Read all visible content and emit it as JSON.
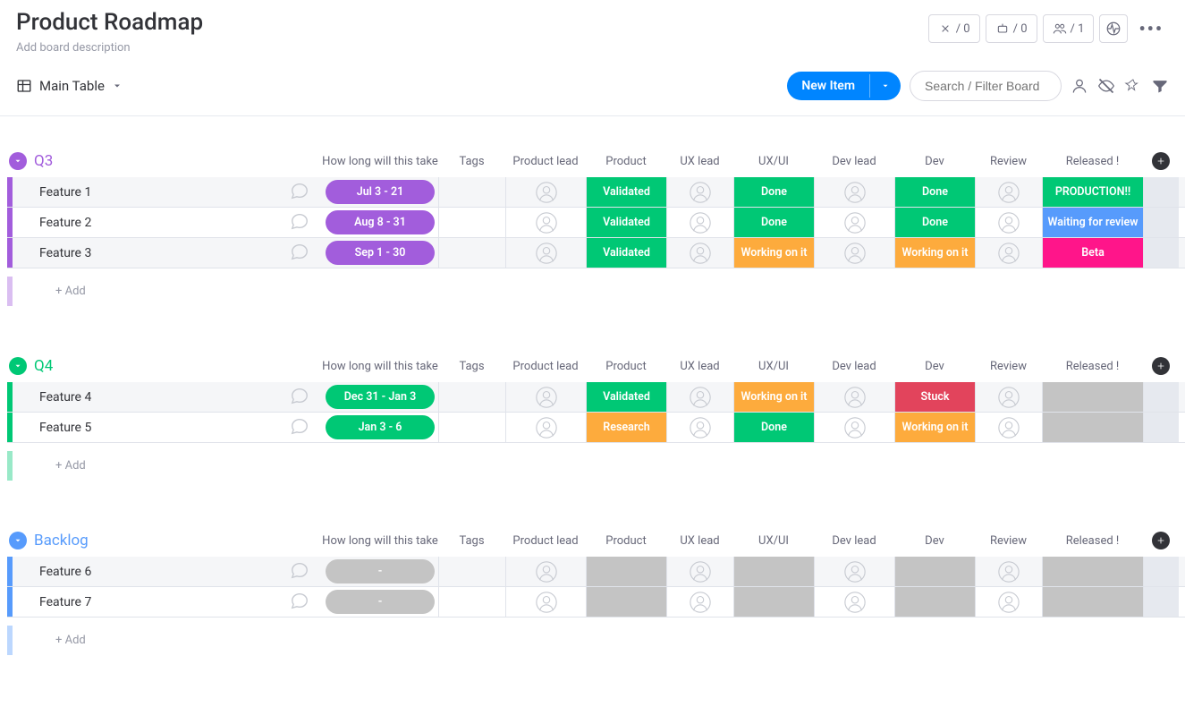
{
  "header": {
    "title": "Product Roadmap",
    "description_placeholder": "Add board description",
    "integrations_count": "/ 0",
    "automations_count": "/ 0",
    "members_count": "/ 1"
  },
  "toolbar": {
    "view_label": "Main Table",
    "new_item_label": "New Item",
    "search_placeholder": "Search / Filter Board"
  },
  "columns": [
    "How long will this take",
    "Tags",
    "Product lead",
    "Product",
    "UX lead",
    "UX/UI",
    "Dev lead",
    "Dev",
    "Review",
    "Released !"
  ],
  "add_row_label": "+ Add",
  "status_colors": {
    "Validated": "#00c875",
    "Done": "#00c875",
    "Working on it": "#fdab3d",
    "Research": "#fdab3d",
    "Stuck": "#e2445c",
    "PRODUCTION!!": "#00c875",
    "Waiting for review": "#579bfc",
    "Beta": "#ff158a"
  },
  "groups": [
    {
      "title": "Q3",
      "color": "#a25ddc",
      "rows": [
        {
          "name": "Feature 1",
          "timeline": "Jul 3 - 21",
          "timeline_color": "#a25ddc",
          "product": "Validated",
          "uxui": "Done",
          "dev": "Done",
          "released": "PRODUCTION!!"
        },
        {
          "name": "Feature 2",
          "timeline": "Aug 8 - 31",
          "timeline_color": "#a25ddc",
          "product": "Validated",
          "uxui": "Done",
          "dev": "Done",
          "released": "Waiting for review"
        },
        {
          "name": "Feature 3",
          "timeline": "Sep 1 - 30",
          "timeline_color": "#a25ddc",
          "product": "Validated",
          "uxui": "Working on it",
          "dev": "Working on it",
          "released": "Beta"
        }
      ]
    },
    {
      "title": "Q4",
      "color": "#00c875",
      "rows": [
        {
          "name": "Feature 4",
          "timeline": "Dec 31 - Jan 3",
          "timeline_color": "#00c875",
          "product": "Validated",
          "uxui": "Working on it",
          "dev": "Stuck",
          "released": ""
        },
        {
          "name": "Feature 5",
          "timeline": "Jan 3 - 6",
          "timeline_color": "#00c875",
          "product": "Research",
          "uxui": "Done",
          "dev": "Working on it",
          "released": ""
        }
      ]
    },
    {
      "title": "Backlog",
      "color": "#579bfc",
      "rows": [
        {
          "name": "Feature 6",
          "timeline": "-",
          "timeline_color": "#c4c4c4",
          "product": "",
          "uxui": "",
          "dev": "",
          "released": ""
        },
        {
          "name": "Feature 7",
          "timeline": "-",
          "timeline_color": "#c4c4c4",
          "product": "",
          "uxui": "",
          "dev": "",
          "released": ""
        }
      ]
    }
  ]
}
